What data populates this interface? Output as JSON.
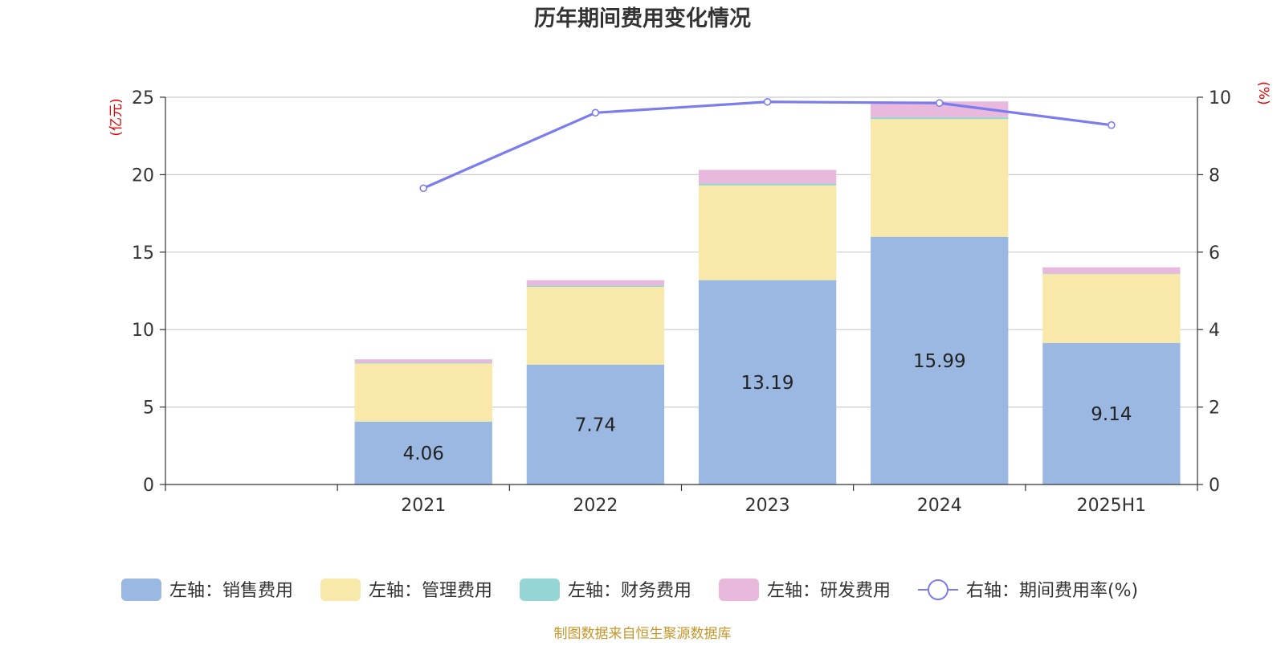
{
  "chart_data": {
    "type": "bar",
    "title": "历年期间费用变化情况",
    "categories": [
      "",
      "2021",
      "2022",
      "2023",
      "2024",
      "2025H1"
    ],
    "y_left": {
      "label": "(亿元)",
      "range": [
        0,
        25
      ],
      "ticks": [
        "0",
        "5",
        "10",
        "15",
        "20",
        "25"
      ]
    },
    "y_right": {
      "label": "(%)",
      "range": [
        0,
        10
      ],
      "ticks": [
        "0",
        "2",
        "4",
        "6",
        "8",
        "10"
      ]
    },
    "series": [
      {
        "name": "左轴：销售费用",
        "type": "bar",
        "color": "#9bb8e3",
        "values": [
          null,
          4.06,
          7.74,
          13.19,
          15.99,
          9.14
        ],
        "labels": [
          "",
          "4.06",
          "7.74",
          "13.19",
          "15.99",
          "9.14"
        ]
      },
      {
        "name": "左轴：管理费用",
        "type": "bar",
        "color": "#f8e8a9",
        "values": [
          null,
          3.75,
          5.02,
          6.12,
          7.6,
          4.45
        ]
      },
      {
        "name": "左轴：财务费用",
        "type": "bar",
        "color": "#96d5d6",
        "values": [
          null,
          0.05,
          0.08,
          0.12,
          0.12,
          0.03
        ]
      },
      {
        "name": "左轴：研发费用",
        "type": "bar",
        "color": "#e8b9dc",
        "values": [
          null,
          0.22,
          0.35,
          0.88,
          1.02,
          0.4
        ]
      },
      {
        "name": "右轴：期间费用率(%)",
        "type": "line",
        "color": "#7b7cee",
        "values": [
          null,
          7.65,
          9.6,
          9.88,
          9.85,
          9.28
        ]
      }
    ],
    "grid": true,
    "legend_position": "bottom"
  },
  "footer": {
    "source": "制图数据来自恒生聚源数据库"
  }
}
